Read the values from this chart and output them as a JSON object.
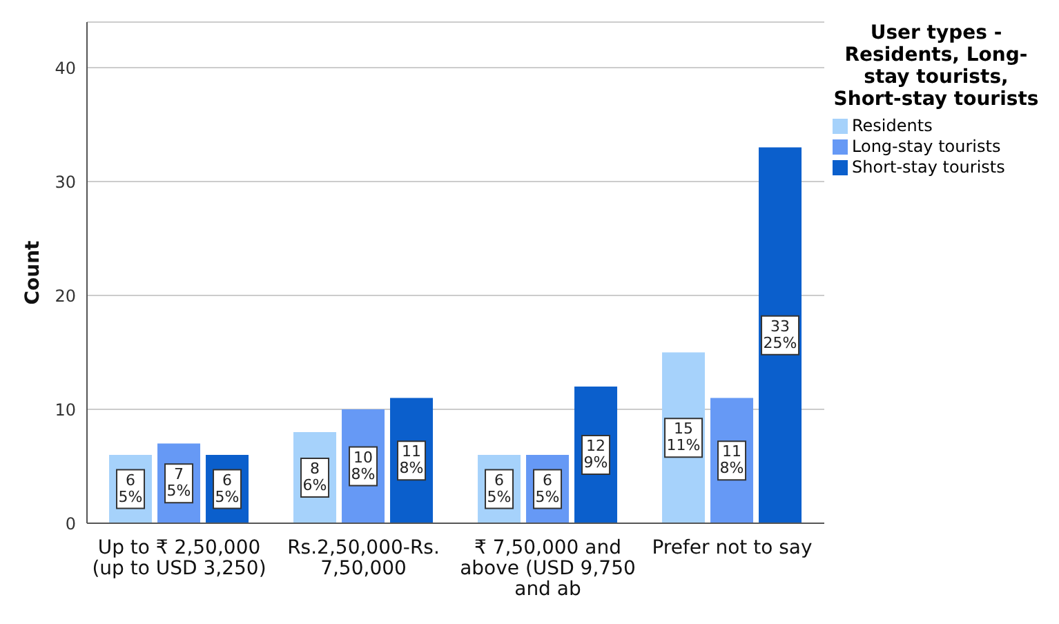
{
  "chart_data": {
    "type": "bar",
    "ylabel": "Count",
    "legend_title": "User types - Residents, Long-stay tourists, Short-stay tourists",
    "categories": [
      "Up to ₹ 2,50,000 (up to USD 3,250)",
      "Rs.2,50,000-Rs. 7,50,000",
      "₹ 7,50,000 and above (USD 9,750 and ab",
      "Prefer not to say"
    ],
    "series": [
      {
        "name": "Residents",
        "color": "#a6d2fb",
        "values": [
          6,
          8,
          6,
          15
        ],
        "value_labels": [
          "6\n5%",
          "8\n6%",
          "6\n5%",
          "15\n11%"
        ]
      },
      {
        "name": "Long-stay tourists",
        "color": "#6699f5",
        "values": [
          7,
          10,
          6,
          11
        ],
        "value_labels": [
          "7\n5%",
          "10\n8%",
          "6\n5%",
          "11\n8%"
        ]
      },
      {
        "name": "Short-stay tourists",
        "color": "#0b5fcc",
        "values": [
          6,
          11,
          12,
          33
        ],
        "value_labels": [
          "6\n5%",
          "11\n8%",
          "12\n9%",
          "33\n25%"
        ]
      }
    ],
    "ylim": [
      0,
      44
    ],
    "yticks": [
      0,
      10,
      20,
      30,
      40
    ],
    "grid": "y",
    "legend": "top right"
  }
}
